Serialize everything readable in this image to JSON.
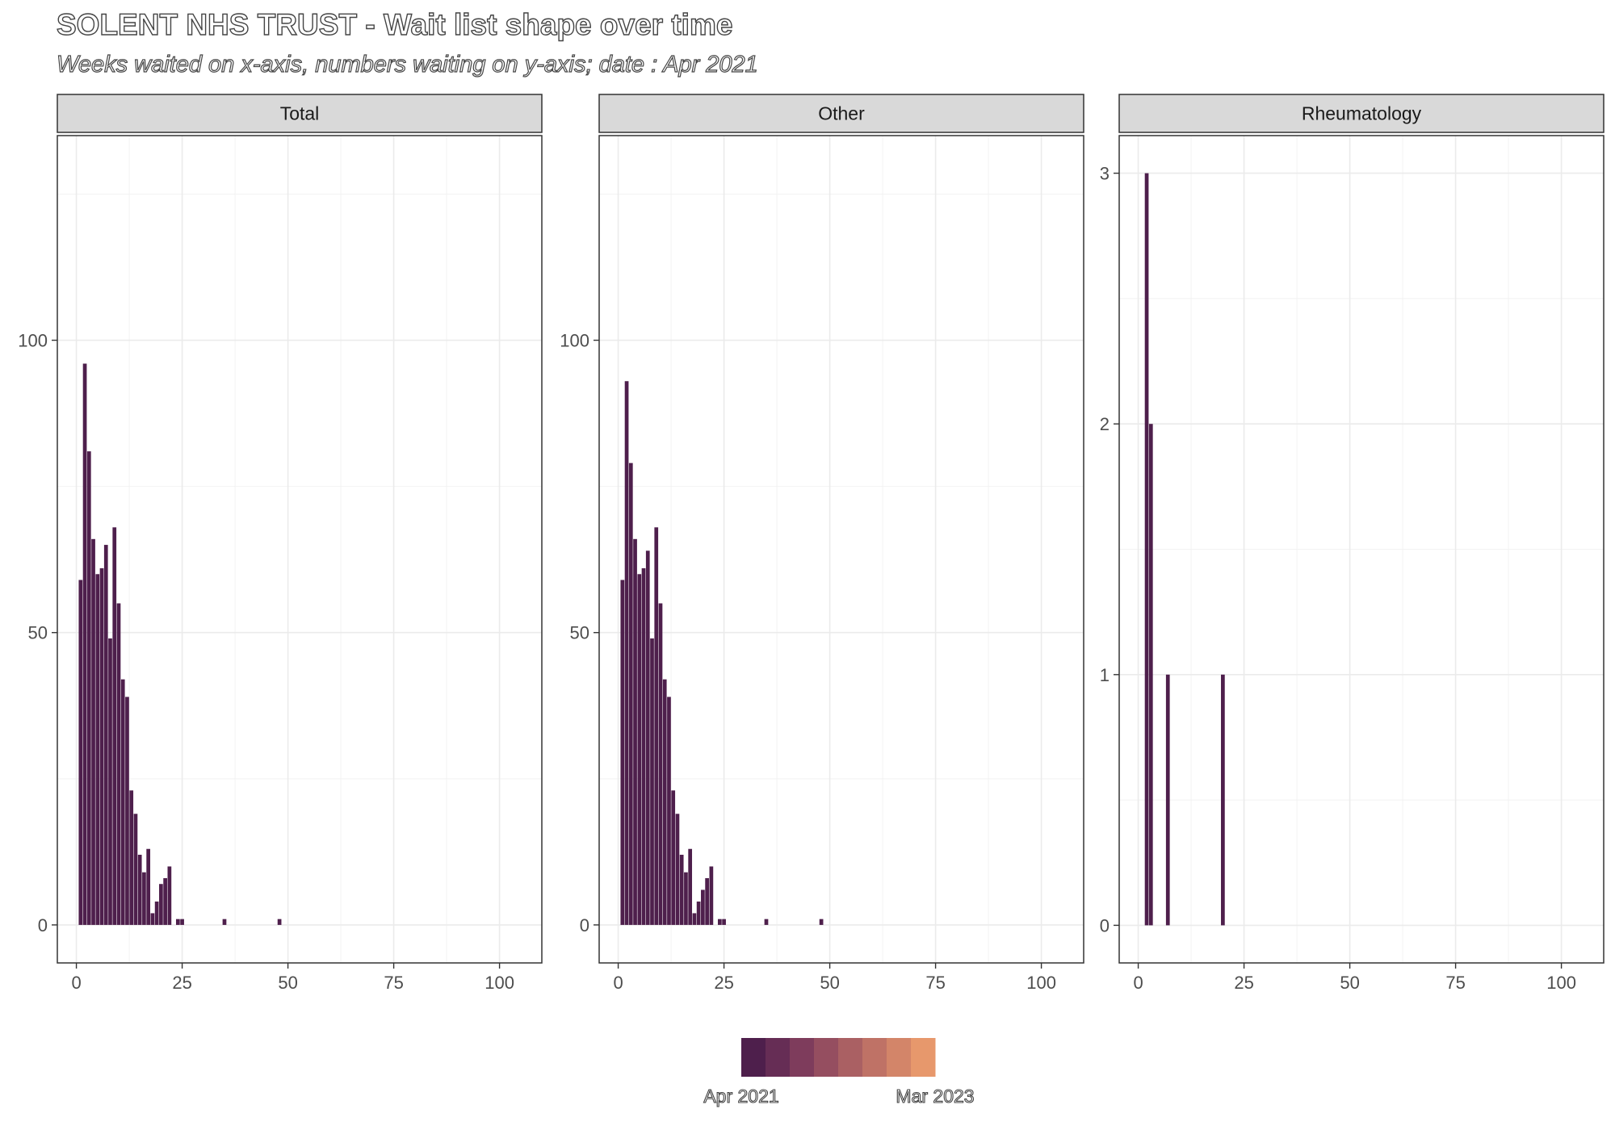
{
  "title": "SOLENT NHS TRUST - Wait list shape over time",
  "subtitle": "Weeks waited on x-axis, numbers waiting on y-axis; date : Apr 2021",
  "chart_data": {
    "type": "bar",
    "x_ticks": [
      0,
      25,
      50,
      75,
      100
    ],
    "xlim": [
      -4.5,
      110
    ],
    "grid": true,
    "bar_color": "#4e1f4c",
    "panels": [
      {
        "name": "Total",
        "ylim": [
          -6.5,
          135
        ],
        "y_ticks": [
          0,
          50,
          100
        ],
        "values": [
          [
            1,
            59
          ],
          [
            2,
            96
          ],
          [
            3,
            81
          ],
          [
            4,
            66
          ],
          [
            5,
            60
          ],
          [
            6,
            61
          ],
          [
            7,
            65
          ],
          [
            8,
            49
          ],
          [
            9,
            68
          ],
          [
            10,
            55
          ],
          [
            11,
            42
          ],
          [
            12,
            39
          ],
          [
            13,
            23
          ],
          [
            14,
            19
          ],
          [
            15,
            12
          ],
          [
            16,
            9
          ],
          [
            17,
            13
          ],
          [
            18,
            2
          ],
          [
            19,
            4
          ],
          [
            20,
            7
          ],
          [
            21,
            8
          ],
          [
            22,
            10
          ],
          [
            24,
            1
          ],
          [
            25,
            1
          ],
          [
            35,
            1
          ],
          [
            48,
            1
          ]
        ]
      },
      {
        "name": "Other",
        "ylim": [
          -6.5,
          135
        ],
        "y_ticks": [
          0,
          50,
          100
        ],
        "values": [
          [
            1,
            59
          ],
          [
            2,
            93
          ],
          [
            3,
            79
          ],
          [
            4,
            66
          ],
          [
            5,
            60
          ],
          [
            6,
            61
          ],
          [
            7,
            64
          ],
          [
            8,
            49
          ],
          [
            9,
            68
          ],
          [
            10,
            55
          ],
          [
            11,
            42
          ],
          [
            12,
            39
          ],
          [
            13,
            23
          ],
          [
            14,
            19
          ],
          [
            15,
            12
          ],
          [
            16,
            9
          ],
          [
            17,
            13
          ],
          [
            18,
            2
          ],
          [
            19,
            4
          ],
          [
            20,
            6
          ],
          [
            21,
            8
          ],
          [
            22,
            10
          ],
          [
            24,
            1
          ],
          [
            25,
            1
          ],
          [
            35,
            1
          ],
          [
            48,
            1
          ]
        ]
      },
      {
        "name": "Rheumatology",
        "ylim": [
          -0.15,
          3.15
        ],
        "y_ticks": [
          0,
          1,
          2,
          3
        ],
        "values": [
          [
            2,
            3
          ],
          [
            3,
            2
          ],
          [
            7,
            1
          ],
          [
            20,
            1
          ]
        ]
      }
    ],
    "legend": {
      "position": "bottom",
      "low_label": "Apr 2021",
      "high_label": "Mar 2023",
      "colors": [
        "#4e1f4c",
        "#662d55",
        "#7e3c5c",
        "#954e60",
        "#aa6063",
        "#bf7266",
        "#d38569",
        "#e7986c"
      ]
    }
  }
}
